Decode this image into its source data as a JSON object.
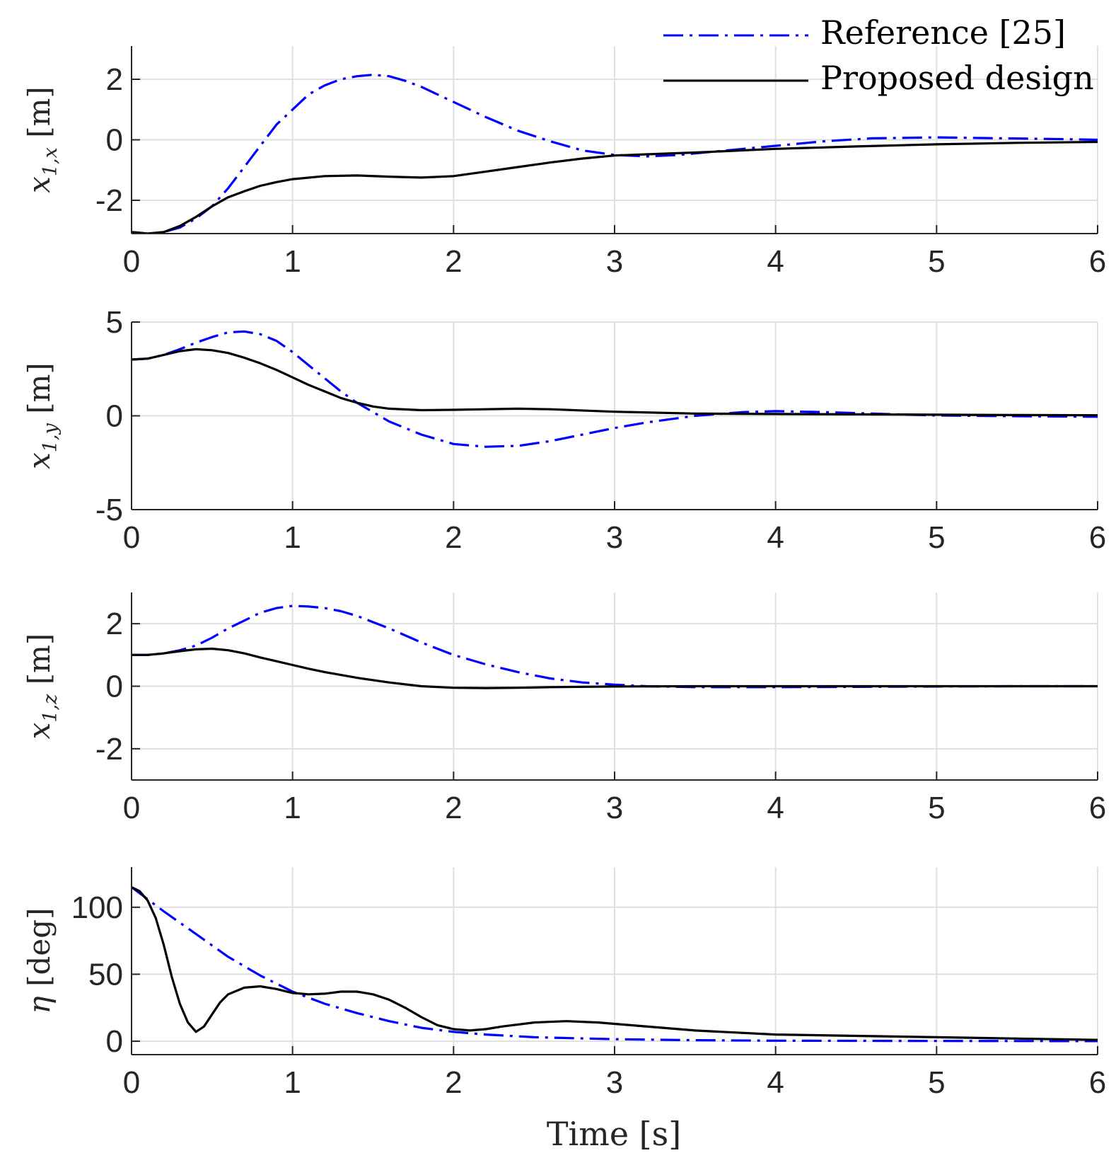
{
  "colors": {
    "reference": "#0000ff",
    "proposed": "#000000",
    "grid": "#dfdfdf",
    "axis": "#262626"
  },
  "legend": [
    {
      "label": "Reference [25]",
      "style": "dash-dot",
      "color": "#0000ff"
    },
    {
      "label": "Proposed design",
      "style": "solid",
      "color": "#000000"
    }
  ],
  "xlabel": "Time [s]",
  "chart_data": [
    {
      "type": "line",
      "ylabel": {
        "sym": "x",
        "sub": "1,x",
        "unit": "[m]"
      },
      "xlim": [
        0,
        6
      ],
      "ylim": [
        -3.1,
        3.1
      ],
      "xticks": [
        0,
        1,
        2,
        3,
        4,
        5,
        6
      ],
      "xtick_labels": [
        "0",
        "1",
        "2",
        "3",
        "4",
        "5",
        "6"
      ],
      "yticks": [
        -2,
        0,
        2
      ],
      "ytick_labels": [
        "-2",
        "0",
        "2"
      ],
      "grid": true,
      "series": [
        {
          "name": "Reference [25]",
          "x": [
            0,
            0.1,
            0.2,
            0.3,
            0.4,
            0.5,
            0.6,
            0.7,
            0.8,
            0.9,
            1.0,
            1.1,
            1.2,
            1.3,
            1.4,
            1.5,
            1.6,
            1.7,
            1.8,
            1.9,
            2.0,
            2.2,
            2.4,
            2.6,
            2.8,
            3.0,
            3.2,
            3.4,
            3.6,
            3.8,
            4.0,
            4.3,
            4.6,
            5.0,
            5.4,
            5.8,
            6.0
          ],
          "y": [
            -3.05,
            -3.1,
            -3.05,
            -2.9,
            -2.6,
            -2.2,
            -1.6,
            -0.9,
            -0.2,
            0.5,
            1.0,
            1.5,
            1.8,
            2.0,
            2.1,
            2.15,
            2.1,
            1.95,
            1.75,
            1.5,
            1.25,
            0.75,
            0.3,
            -0.05,
            -0.35,
            -0.5,
            -0.55,
            -0.5,
            -0.4,
            -0.3,
            -0.2,
            -0.05,
            0.05,
            0.08,
            0.05,
            0.02,
            0.0
          ]
        },
        {
          "name": "Proposed design",
          "x": [
            0,
            0.1,
            0.2,
            0.3,
            0.4,
            0.5,
            0.6,
            0.7,
            0.8,
            0.9,
            1.0,
            1.2,
            1.4,
            1.6,
            1.8,
            2.0,
            2.2,
            2.4,
            2.6,
            2.8,
            3.0,
            3.2,
            3.5,
            4.0,
            4.5,
            5.0,
            5.5,
            6.0
          ],
          "y": [
            -3.05,
            -3.1,
            -3.05,
            -2.85,
            -2.55,
            -2.2,
            -1.9,
            -1.7,
            -1.52,
            -1.4,
            -1.3,
            -1.2,
            -1.18,
            -1.22,
            -1.25,
            -1.2,
            -1.05,
            -0.9,
            -0.75,
            -0.62,
            -0.52,
            -0.48,
            -0.42,
            -0.3,
            -0.22,
            -0.15,
            -0.1,
            -0.07
          ]
        }
      ]
    },
    {
      "type": "line",
      "ylabel": {
        "sym": "x",
        "sub": "1,y",
        "unit": "[m]"
      },
      "xlim": [
        0,
        6
      ],
      "ylim": [
        -5,
        5
      ],
      "xticks": [
        0,
        1,
        2,
        3,
        4,
        5,
        6
      ],
      "xtick_labels": [
        "0",
        "1",
        "2",
        "3",
        "4",
        "5",
        "6"
      ],
      "yticks": [
        -5,
        0,
        5
      ],
      "ytick_labels": [
        "-5",
        "0",
        "5"
      ],
      "grid": true,
      "series": [
        {
          "name": "Reference [25]",
          "x": [
            0,
            0.1,
            0.2,
            0.3,
            0.4,
            0.5,
            0.6,
            0.7,
            0.8,
            0.9,
            1.0,
            1.1,
            1.2,
            1.3,
            1.4,
            1.5,
            1.6,
            1.8,
            2.0,
            2.2,
            2.4,
            2.6,
            2.8,
            3.0,
            3.2,
            3.5,
            3.8,
            4.0,
            4.3,
            4.6,
            5.0,
            5.5,
            6.0
          ],
          "y": [
            3.0,
            3.05,
            3.25,
            3.55,
            3.9,
            4.2,
            4.45,
            4.5,
            4.35,
            4.0,
            3.4,
            2.7,
            2.0,
            1.3,
            0.7,
            0.2,
            -0.3,
            -1.0,
            -1.5,
            -1.65,
            -1.6,
            -1.35,
            -1.0,
            -0.65,
            -0.35,
            0.0,
            0.2,
            0.25,
            0.2,
            0.12,
            0.02,
            -0.02,
            -0.05
          ]
        },
        {
          "name": "Proposed design",
          "x": [
            0,
            0.1,
            0.2,
            0.3,
            0.4,
            0.5,
            0.6,
            0.7,
            0.8,
            0.9,
            1.0,
            1.1,
            1.2,
            1.3,
            1.4,
            1.5,
            1.6,
            1.8,
            2.0,
            2.2,
            2.4,
            2.6,
            3.0,
            3.5,
            4.0,
            4.5,
            5.0,
            5.5,
            6.0
          ],
          "y": [
            3.0,
            3.05,
            3.25,
            3.45,
            3.55,
            3.5,
            3.35,
            3.1,
            2.8,
            2.45,
            2.05,
            1.65,
            1.3,
            0.95,
            0.7,
            0.5,
            0.38,
            0.3,
            0.32,
            0.35,
            0.38,
            0.35,
            0.22,
            0.12,
            0.1,
            0.08,
            0.06,
            0.04,
            0.03
          ]
        }
      ]
    },
    {
      "type": "line",
      "ylabel": {
        "sym": "x",
        "sub": "1,z",
        "unit": "[m]"
      },
      "xlim": [
        0,
        6
      ],
      "ylim": [
        -3,
        3
      ],
      "xticks": [
        0,
        1,
        2,
        3,
        4,
        5,
        6
      ],
      "xtick_labels": [
        "0",
        "1",
        "2",
        "3",
        "4",
        "5",
        "6"
      ],
      "yticks": [
        -2,
        0,
        2
      ],
      "ytick_labels": [
        "-2",
        "0",
        "2"
      ],
      "grid": true,
      "series": [
        {
          "name": "Reference [25]",
          "x": [
            0,
            0.1,
            0.2,
            0.3,
            0.4,
            0.5,
            0.6,
            0.7,
            0.8,
            0.9,
            1.0,
            1.1,
            1.2,
            1.3,
            1.4,
            1.5,
            1.6,
            1.8,
            2.0,
            2.2,
            2.4,
            2.6,
            2.8,
            3.0,
            3.2,
            3.5,
            4.0,
            4.5,
            5.0,
            5.5,
            6.0
          ],
          "y": [
            1.0,
            1.0,
            1.05,
            1.15,
            1.3,
            1.55,
            1.85,
            2.1,
            2.35,
            2.5,
            2.57,
            2.55,
            2.5,
            2.4,
            2.25,
            2.05,
            1.85,
            1.4,
            1.0,
            0.7,
            0.45,
            0.25,
            0.12,
            0.05,
            0.0,
            -0.03,
            -0.03,
            -0.02,
            -0.01,
            0.0,
            0.0
          ]
        },
        {
          "name": "Proposed design",
          "x": [
            0,
            0.1,
            0.2,
            0.3,
            0.4,
            0.5,
            0.6,
            0.7,
            0.8,
            0.9,
            1.0,
            1.1,
            1.2,
            1.4,
            1.6,
            1.8,
            2.0,
            2.2,
            2.4,
            2.6,
            3.0,
            3.5,
            4.0,
            5.0,
            6.0
          ],
          "y": [
            1.0,
            1.0,
            1.05,
            1.12,
            1.18,
            1.2,
            1.15,
            1.05,
            0.92,
            0.8,
            0.68,
            0.56,
            0.45,
            0.27,
            0.12,
            0.0,
            -0.05,
            -0.06,
            -0.05,
            -0.03,
            -0.01,
            0.0,
            0.0,
            0.0,
            0.0
          ]
        }
      ]
    },
    {
      "type": "line",
      "ylabel": {
        "sym": "η",
        "sub": "",
        "unit": "[deg]"
      },
      "xlim": [
        0,
        6
      ],
      "ylim": [
        -10,
        130
      ],
      "xticks": [
        0,
        1,
        2,
        3,
        4,
        5,
        6
      ],
      "xtick_labels": [
        "0",
        "1",
        "2",
        "3",
        "4",
        "5",
        "6"
      ],
      "yticks": [
        0,
        50,
        100
      ],
      "ytick_labels": [
        "0",
        "50",
        "100"
      ],
      "grid": true,
      "series": [
        {
          "name": "Reference [25]",
          "x": [
            0,
            0.2,
            0.4,
            0.6,
            0.8,
            1.0,
            1.2,
            1.4,
            1.6,
            1.8,
            2.0,
            2.2,
            2.5,
            3.0,
            3.5,
            4.0,
            5.0,
            6.0
          ],
          "y": [
            115,
            97,
            80,
            63,
            49,
            37,
            28,
            21,
            15,
            10,
            7,
            5,
            3,
            1.5,
            0.8,
            0.4,
            0.2,
            0.1
          ]
        },
        {
          "name": "Proposed design",
          "x": [
            0,
            0.05,
            0.1,
            0.15,
            0.2,
            0.25,
            0.3,
            0.35,
            0.4,
            0.45,
            0.5,
            0.55,
            0.6,
            0.7,
            0.8,
            0.9,
            1.0,
            1.1,
            1.2,
            1.3,
            1.4,
            1.5,
            1.6,
            1.7,
            1.8,
            1.9,
            2.0,
            2.1,
            2.2,
            2.3,
            2.5,
            2.7,
            2.9,
            3.1,
            3.5,
            4.0,
            4.5,
            5.0,
            5.5,
            6.0
          ],
          "y": [
            115,
            112,
            105,
            92,
            72,
            48,
            28,
            14,
            7,
            11,
            20,
            29,
            35,
            40,
            41,
            39,
            36,
            35,
            35.5,
            37,
            37,
            35,
            31,
            25,
            18,
            12,
            9,
            8,
            9,
            11,
            14,
            15,
            14,
            12,
            8,
            5,
            4,
            3,
            2,
            1
          ]
        }
      ]
    }
  ]
}
